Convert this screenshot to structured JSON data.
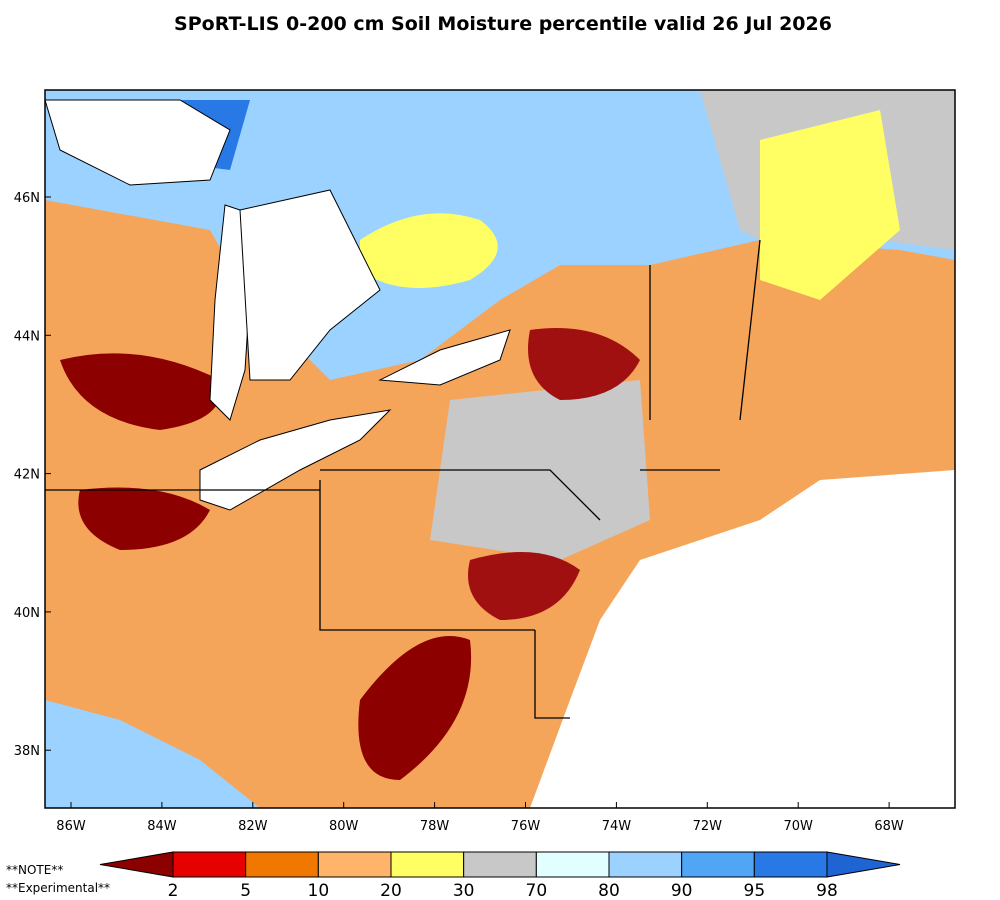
{
  "title": "SPoRT-LIS 0-200 cm Soil Moisture percentile valid 26 Jul 2026",
  "lat_labels": [
    "46N",
    "44N",
    "42N",
    "40N",
    "38N"
  ],
  "lon_labels": [
    "86W",
    "84W",
    "82W",
    "80W",
    "78W",
    "76W",
    "74W",
    "72W",
    "70W",
    "68W"
  ],
  "colorbar": {
    "labels": [
      "2",
      "5",
      "10",
      "20",
      "30",
      "70",
      "80",
      "90",
      "95",
      "98"
    ],
    "colors": [
      "#8c0000",
      "#e60000",
      "#f07800",
      "#ffb469",
      "#ffff64",
      "#c8c8c8",
      "#e1ffff",
      "#9bd2ff",
      "#50a5f5",
      "#2878e6",
      "#1e64d2"
    ]
  },
  "notes": [
    "**NOTE**",
    "**Experimental**"
  ]
}
